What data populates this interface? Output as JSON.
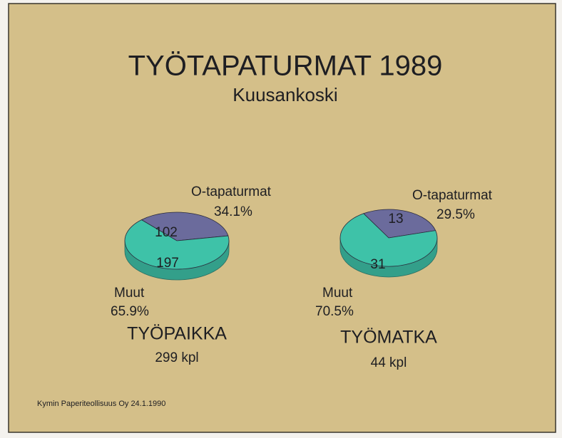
{
  "title": "TYÖTAPATURMAT 1989",
  "subtitle": "Kuusankoski",
  "footnote": "Kymin Paperiteollisuus Oy 24.1.1990",
  "chart_data": [
    {
      "type": "pie",
      "title": "TYÖPAIKKA",
      "total_label": "299 kpl",
      "categories": [
        "O-tapaturmat",
        "Muut"
      ],
      "values": [
        102,
        197
      ],
      "percentages": [
        34.1,
        65.9
      ],
      "percentage_labels": [
        "34.1%",
        "65.9%"
      ],
      "colors": [
        "#6b6b9c",
        "#3ec2a8"
      ]
    },
    {
      "type": "pie",
      "title": "TYÖMATKA",
      "total_label": "44 kpl",
      "categories": [
        "O-tapaturmat",
        "Muut"
      ],
      "values": [
        13,
        31
      ],
      "percentages": [
        29.5,
        70.5
      ],
      "percentage_labels": [
        "29.5%",
        "70.5%"
      ],
      "colors": [
        "#6b6b9c",
        "#3ec2a8"
      ]
    }
  ]
}
